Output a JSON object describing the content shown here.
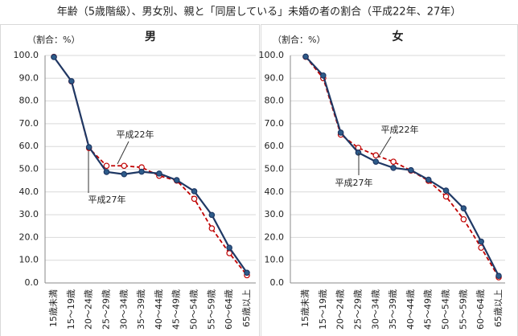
{
  "title": "年齢（5歳階級）、男女別、親と「同居している」未婚の者の割合（平成22年、27年）",
  "chart_data": [
    {
      "type": "line",
      "title": "男",
      "y_label": "（割合：%）",
      "categories": [
        "15歳未満",
        "15～19歳",
        "20～24歳",
        "25～29歳",
        "30～34歳",
        "35～39歳",
        "40～44歳",
        "45～49歳",
        "50～54歳",
        "55～59歳",
        "60～64歳",
        "65歳以上"
      ],
      "series": [
        {
          "name": "平成22年",
          "color": "#c00000",
          "values": [
            99.4,
            88.6,
            59.3,
            51.5,
            51.5,
            50.8,
            47.1,
            45.0,
            37.0,
            24.0,
            13.1,
            3.4
          ]
        },
        {
          "name": "平成27年",
          "color": "#1f3864",
          "values": [
            99.3,
            88.7,
            59.7,
            48.8,
            47.8,
            48.9,
            48.1,
            45.2,
            40.3,
            29.9,
            15.5,
            4.5
          ]
        }
      ],
      "ylim": [
        0,
        100
      ],
      "yticks": [
        {
          "value": 0,
          "label": "0.0"
        },
        {
          "value": 10,
          "label": "10.0"
        },
        {
          "value": 20,
          "label": "20.0"
        },
        {
          "value": 30,
          "label": "30.0"
        },
        {
          "value": 40,
          "label": "40.0"
        },
        {
          "value": 50,
          "label": "50.0"
        },
        {
          "value": 60,
          "label": "60.0"
        },
        {
          "value": 70,
          "label": "70.0"
        },
        {
          "value": 80,
          "label": "80.0"
        },
        {
          "value": 90,
          "label": "90.0"
        },
        {
          "value": 100,
          "label": "100.0"
        }
      ],
      "grid": true
    },
    {
      "type": "line",
      "title": "女",
      "y_label": "（割合：%）",
      "categories": [
        "15歳未満",
        "15～19歳",
        "20～24歳",
        "25～29歳",
        "30～34歳",
        "35～39歳",
        "40～44歳",
        "45～49歳",
        "50～54歳",
        "55～59歳",
        "60～64歳",
        "65歳以上"
      ],
      "series": [
        {
          "name": "平成22年",
          "color": "#c00000",
          "values": [
            99.4,
            90.0,
            65.2,
            59.4,
            56.1,
            53.3,
            49.4,
            44.9,
            38.0,
            28.0,
            15.5,
            2.5
          ]
        },
        {
          "name": "平成27年",
          "color": "#1f3864",
          "values": [
            99.5,
            91.2,
            66.1,
            57.3,
            53.3,
            50.6,
            49.6,
            45.4,
            40.6,
            32.8,
            18.2,
            3.1
          ]
        }
      ],
      "ylim": [
        0,
        100
      ],
      "yticks": [
        {
          "value": 0,
          "label": "0.0"
        },
        {
          "value": 10,
          "label": "10.0"
        },
        {
          "value": 20,
          "label": "20.0"
        },
        {
          "value": 30,
          "label": "30.0"
        },
        {
          "value": 40,
          "label": "40.0"
        },
        {
          "value": 50,
          "label": "50.0"
        },
        {
          "value": 60,
          "label": "60.0"
        },
        {
          "value": 70,
          "label": "70.0"
        },
        {
          "value": 80,
          "label": "80.0"
        },
        {
          "value": 90,
          "label": "90.0"
        },
        {
          "value": 100,
          "label": "100.0"
        }
      ],
      "grid": true
    }
  ]
}
